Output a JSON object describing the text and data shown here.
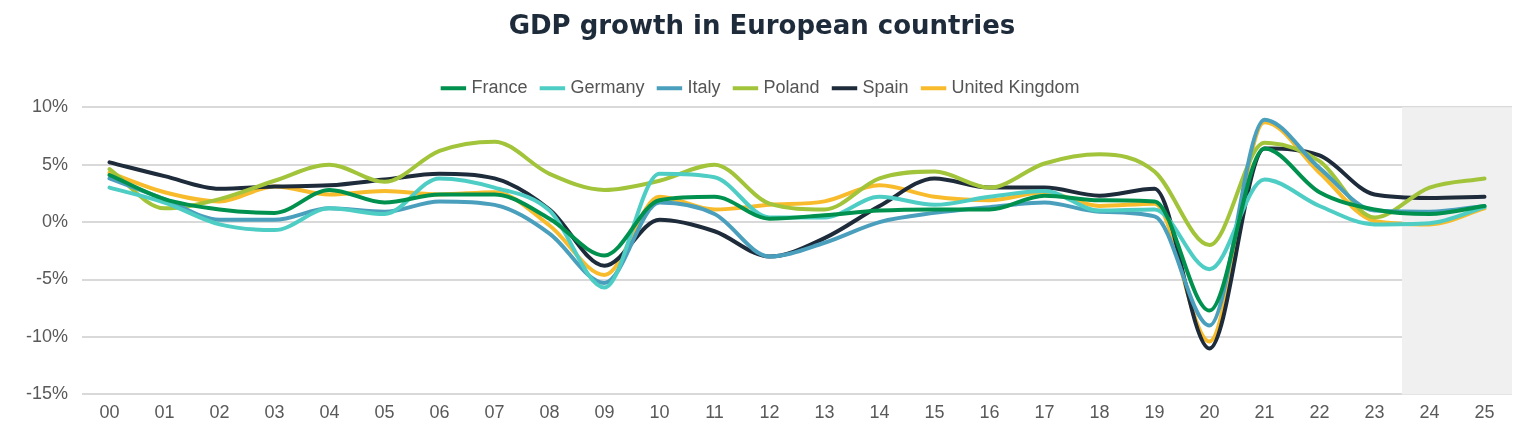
{
  "chart_data": {
    "type": "line",
    "title": "GDP growth in European countries",
    "categories": [
      "00",
      "01",
      "02",
      "03",
      "04",
      "05",
      "06",
      "07",
      "08",
      "09",
      "10",
      "11",
      "12",
      "13",
      "14",
      "15",
      "16",
      "17",
      "18",
      "19",
      "20",
      "21",
      "22",
      "23",
      "24",
      "25"
    ],
    "series": [
      {
        "name": "France",
        "color": "#00914f",
        "values": [
          4.1,
          2.0,
          1.1,
          0.8,
          2.8,
          1.7,
          2.4,
          2.4,
          0.3,
          -2.9,
          1.9,
          2.2,
          0.3,
          0.6,
          1.0,
          1.1,
          1.1,
          2.3,
          1.9,
          1.8,
          -7.7,
          6.4,
          2.6,
          1.1,
          0.7,
          1.4
        ]
      },
      {
        "name": "Germany",
        "color": "#4ecdc4",
        "values": [
          3.0,
          1.7,
          -0.2,
          -0.7,
          1.2,
          0.7,
          3.8,
          3.0,
          1.0,
          -5.7,
          4.2,
          3.9,
          0.4,
          0.4,
          2.2,
          1.5,
          2.2,
          2.7,
          1.0,
          1.1,
          -4.1,
          3.7,
          1.4,
          -0.2,
          -0.1,
          1.3
        ]
      },
      {
        "name": "Italy",
        "color": "#4a9fbd",
        "values": [
          3.8,
          2.0,
          0.2,
          0.2,
          1.2,
          0.9,
          1.8,
          1.5,
          -1.0,
          -5.3,
          1.7,
          0.7,
          -3.0,
          -1.8,
          0.0,
          0.8,
          1.3,
          1.7,
          0.9,
          0.5,
          -9.0,
          8.9,
          4.7,
          1.0,
          0.9,
          1.4
        ]
      },
      {
        "name": "Poland",
        "color": "#a2c43a",
        "values": [
          4.6,
          1.2,
          2.0,
          3.6,
          5.0,
          3.5,
          6.2,
          7.0,
          4.2,
          2.8,
          3.6,
          5.0,
          1.6,
          1.1,
          3.8,
          4.4,
          3.0,
          5.1,
          5.9,
          4.4,
          -2.0,
          6.9,
          5.3,
          0.4,
          3.0,
          3.8
        ]
      },
      {
        "name": "Spain",
        "color": "#1e2b3a",
        "values": [
          5.2,
          4.0,
          2.9,
          3.1,
          3.2,
          3.7,
          4.2,
          3.8,
          1.1,
          -3.8,
          0.2,
          -0.8,
          -3.0,
          -1.4,
          1.4,
          3.8,
          3.0,
          3.0,
          2.3,
          2.9,
          -11.0,
          6.4,
          5.8,
          2.4,
          2.1,
          2.2
        ]
      },
      {
        "name": "United Kingdom",
        "color": "#f8bb2c",
        "values": [
          4.3,
          2.6,
          1.8,
          3.1,
          2.4,
          2.7,
          2.4,
          2.6,
          -0.3,
          -4.6,
          2.2,
          1.1,
          1.5,
          1.8,
          3.2,
          2.2,
          1.9,
          2.6,
          1.4,
          1.6,
          -10.4,
          8.7,
          4.3,
          0.1,
          -0.2,
          1.2
        ]
      }
    ],
    "ylim": [
      -15,
      10
    ],
    "yticks": [
      {
        "value": -15,
        "label": "-15%"
      },
      {
        "value": -10,
        "label": "-10%"
      },
      {
        "value": -5,
        "label": "-5%"
      },
      {
        "value": 0,
        "label": "0%"
      },
      {
        "value": 5,
        "label": "5%"
      },
      {
        "value": 10,
        "label": "10%"
      }
    ],
    "bands": [
      {
        "axis": "x",
        "from": "24",
        "to": "25",
        "color": "#f0f0f0"
      }
    ],
    "grid": "y",
    "legend": "top",
    "marker": "none",
    "line_style": "solid"
  }
}
